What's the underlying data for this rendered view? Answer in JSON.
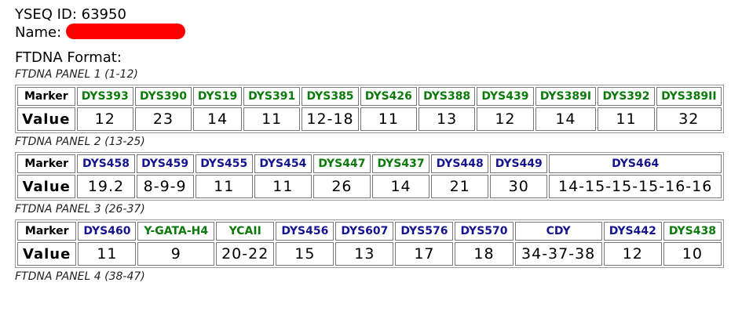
{
  "header": {
    "id": "YSEQ ID: 63950",
    "name_label": "Name:",
    "format": "FTDNA Format:"
  },
  "panels": [
    {
      "title": "FTDNA PANEL 1 (1-12)",
      "row_labels": [
        "Marker",
        "Value"
      ],
      "markers": [
        {
          "name": "DYS393",
          "color": "#0b7a0b",
          "value": "12"
        },
        {
          "name": "DYS390",
          "color": "#0b7a0b",
          "value": "23"
        },
        {
          "name": "DYS19",
          "color": "#0b7a0b",
          "value": "14"
        },
        {
          "name": "DYS391",
          "color": "#0b7a0b",
          "value": "11"
        },
        {
          "name": "DYS385",
          "color": "#0b7a0b",
          "value": "12-18"
        },
        {
          "name": "DYS426",
          "color": "#0b7a0b",
          "value": "11"
        },
        {
          "name": "DYS388",
          "color": "#0b7a0b",
          "value": "13"
        },
        {
          "name": "DYS439",
          "color": "#0b7a0b",
          "value": "12"
        },
        {
          "name": "DYS389I",
          "color": "#0b7a0b",
          "value": "14"
        },
        {
          "name": "DYS392",
          "color": "#0b7a0b",
          "value": "11"
        },
        {
          "name": "DYS389II",
          "color": "#0b7a0b",
          "value": "32"
        }
      ]
    },
    {
      "title": "FTDNA PANEL 2 (13-25)",
      "row_labels": [
        "Marker",
        "Value"
      ],
      "markers": [
        {
          "name": "DYS458",
          "color": "#15158f",
          "value": "19.2"
        },
        {
          "name": "DYS459",
          "color": "#15158f",
          "value": "8-9-9"
        },
        {
          "name": "DYS455",
          "color": "#15158f",
          "value": "11"
        },
        {
          "name": "DYS454",
          "color": "#15158f",
          "value": "11"
        },
        {
          "name": "DYS447",
          "color": "#0b7a0b",
          "value": "26"
        },
        {
          "name": "DYS437",
          "color": "#0b7a0b",
          "value": "14"
        },
        {
          "name": "DYS448",
          "color": "#15158f",
          "value": "21"
        },
        {
          "name": "DYS449",
          "color": "#15158f",
          "value": "30"
        },
        {
          "name": "DYS464",
          "color": "#15158f",
          "value": "14-15-15-15-16-16"
        }
      ]
    },
    {
      "title": "FTDNA PANEL 3 (26-37)",
      "row_labels": [
        "Marker",
        "Value"
      ],
      "markers": [
        {
          "name": "DYS460",
          "color": "#15158f",
          "value": "11"
        },
        {
          "name": "Y-GATA-H4",
          "color": "#0b7a0b",
          "value": "9"
        },
        {
          "name": "YCAII",
          "color": "#0b7a0b",
          "value": "20-22"
        },
        {
          "name": "DYS456",
          "color": "#15158f",
          "value": "15"
        },
        {
          "name": "DYS607",
          "color": "#15158f",
          "value": "13"
        },
        {
          "name": "DYS576",
          "color": "#15158f",
          "value": "17"
        },
        {
          "name": "DYS570",
          "color": "#15158f",
          "value": "18"
        },
        {
          "name": "CDY",
          "color": "#15158f",
          "value": "34-37-38"
        },
        {
          "name": "DYS442",
          "color": "#15158f",
          "value": "12"
        },
        {
          "name": "DYS438",
          "color": "#0b7a0b",
          "value": "10"
        }
      ]
    }
  ],
  "next_panel": "FTDNA PANEL 4 (38-47)"
}
